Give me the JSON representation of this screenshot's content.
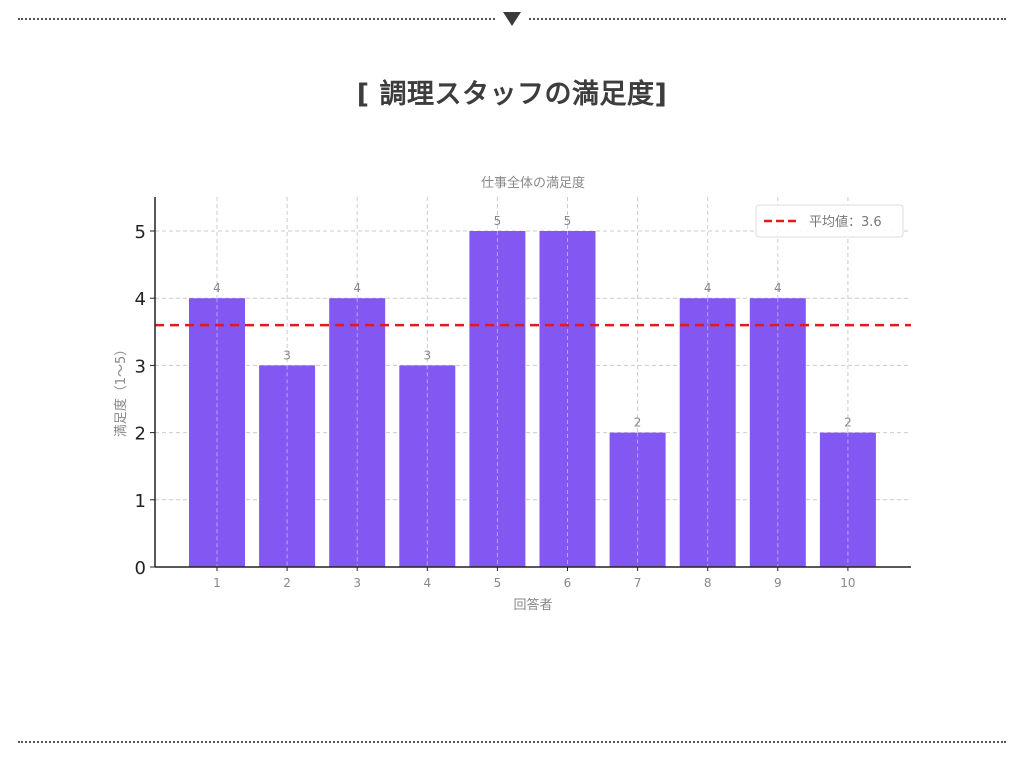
{
  "page": {
    "title": "[ 調理スタッフの満足度]"
  },
  "decor": {
    "top_marker_icon": "triangle-down-icon"
  },
  "chart_data": {
    "type": "bar",
    "title": "仕事全体の満足度",
    "xlabel": "回答者",
    "ylabel": "満足度（1〜5）",
    "categories": [
      "1",
      "2",
      "3",
      "4",
      "5",
      "6",
      "7",
      "8",
      "9",
      "10"
    ],
    "values": [
      4,
      3,
      4,
      3,
      5,
      5,
      2,
      4,
      4,
      2
    ],
    "data_labels": [
      "4",
      "3",
      "4",
      "3",
      "5",
      "5",
      "2",
      "4",
      "4",
      "2"
    ],
    "yticks": [
      "0",
      "1",
      "2",
      "3",
      "4",
      "5"
    ],
    "ylim": [
      0,
      5.5
    ],
    "grid": true,
    "bar_color": "#8257f2",
    "reference_line": {
      "value": 3.6,
      "style": "dashed",
      "color": "#e31a1c",
      "label": "平均値：3.6"
    },
    "legend": {
      "position": "upper right",
      "entries": [
        "平均値：3.6"
      ]
    }
  }
}
